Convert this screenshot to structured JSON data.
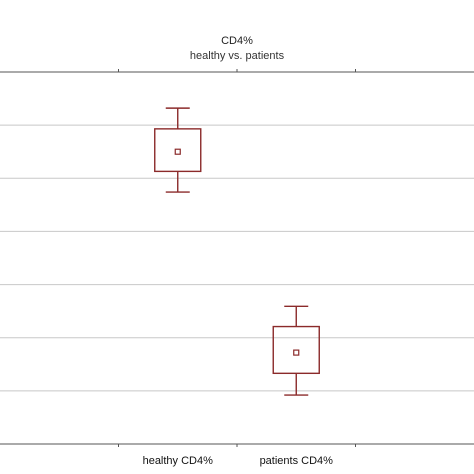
{
  "chart_data": {
    "type": "box",
    "title": "CD4%",
    "subtitle": "healthy vs. patients",
    "categories": [
      "healthy CD4%",
      "patients CD4%"
    ],
    "grid": true,
    "legend": "none",
    "ylim": [
      0,
      7
    ],
    "y_gridlines": [
      1,
      2,
      3,
      4,
      5,
      6
    ],
    "series": [
      {
        "values": [
          {
            "median": 5.5,
            "q1": 5.13,
            "q3": 5.93,
            "whisker_low": 4.74,
            "whisker_high": 6.32
          },
          {
            "median": 1.72,
            "q1": 1.33,
            "q3": 2.21,
            "whisker_low": 0.92,
            "whisker_high": 2.59
          }
        ]
      }
    ],
    "colors": {
      "box": "#8b2a2a",
      "grid": "#c8c8c8",
      "axis": "#555555"
    }
  }
}
